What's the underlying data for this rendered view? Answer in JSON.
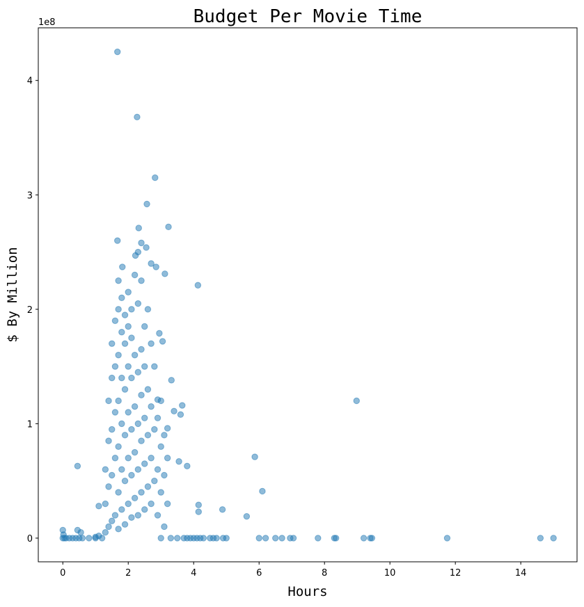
{
  "chart_data": {
    "type": "scatter",
    "title": "Budget Per Movie Time",
    "xlabel": "Hours",
    "ylabel": "$ By Million",
    "y_offset_label": "1e8",
    "color": "#1f77b4",
    "alpha": 0.5,
    "xlim": [
      -0.75,
      15.72
    ],
    "xticks": [
      0,
      2,
      4,
      6,
      8,
      10,
      12,
      14
    ],
    "ylim": [
      -20700000,
      446000000
    ],
    "yticks": [
      {
        "value": 0,
        "label": "0"
      },
      {
        "value": 100000000,
        "label": "1"
      },
      {
        "value": 200000000,
        "label": "2"
      },
      {
        "value": 300000000,
        "label": "3"
      },
      {
        "value": 400000000,
        "label": "4"
      }
    ],
    "x": [
      1.67,
      2.27,
      2.82,
      2.57,
      2.32,
      3.23,
      1.67,
      2.4,
      2.55,
      2.3,
      2.22,
      1.82,
      2.7,
      2.85,
      2.95,
      3.12,
      4.13,
      8.98,
      3.65,
      3.32,
      5.87,
      6.1,
      4.15,
      4.15,
      4.88,
      5.62,
      0.45,
      3.8,
      3.55,
      3.05,
      3.6,
      2.9,
      3.4,
      3.2,
      3.0,
      0,
      0.05,
      0.1,
      0.2,
      0.3,
      0.4,
      0.5,
      0.6,
      0.8,
      1.0,
      1.2,
      3.0,
      3.3,
      3.5,
      3.7,
      3.8,
      3.9,
      4.0,
      4.1,
      4.2,
      4.3,
      4.5,
      4.6,
      4.7,
      4.9,
      5.0,
      6.0,
      6.2,
      6.5,
      6.7,
      6.95,
      7.05,
      7.8,
      8.3,
      8.35,
      9.2,
      9.4,
      9.45,
      11.75,
      14.6,
      15.0,
      0,
      0.45,
      0.55,
      0.02,
      1.3,
      1.3,
      1.3,
      1.4,
      1.4,
      1.4,
      1.4,
      1.5,
      1.5,
      1.5,
      1.5,
      1.5,
      1.6,
      1.6,
      1.6,
      1.6,
      1.6,
      1.7,
      1.7,
      1.7,
      1.7,
      1.7,
      1.7,
      1.7,
      1.8,
      1.8,
      1.8,
      1.8,
      1.8,
      1.8,
      1.9,
      1.9,
      1.9,
      1.9,
      1.9,
      1.9,
      2.0,
      2.0,
      2.0,
      2.0,
      2.0,
      2.0,
      2.1,
      2.1,
      2.1,
      2.1,
      2.1,
      2.1,
      2.2,
      2.2,
      2.2,
      2.2,
      2.2,
      2.3,
      2.3,
      2.3,
      2.3,
      2.3,
      2.4,
      2.4,
      2.4,
      2.4,
      2.4,
      2.5,
      2.5,
      2.5,
      2.5,
      2.5,
      2.6,
      2.6,
      2.6,
      2.6,
      2.7,
      2.7,
      2.7,
      2.7,
      2.8,
      2.8,
      2.8,
      2.9,
      2.9,
      2.9,
      3.0,
      3.0,
      3.1,
      3.1,
      3.1,
      3.2,
      3.2,
      1.1,
      1.1,
      1.0
    ],
    "values": [
      425000000,
      368000000,
      315000000,
      292000000,
      271000000,
      272000000,
      260000000,
      258000000,
      254000000,
      250000000,
      247000000,
      237000000,
      240000000,
      237000000,
      179000000,
      231000000,
      221000000,
      120000000,
      116000000,
      138000000,
      71000000,
      41000000,
      29000000,
      23000000,
      25000000,
      19000000,
      63000000,
      63000000,
      67000000,
      172000000,
      108000000,
      121000000,
      111000000,
      96000000,
      120000000,
      0,
      0,
      0,
      0,
      0,
      0,
      0,
      0,
      0,
      0,
      0,
      0,
      0,
      0,
      0,
      0,
      0,
      0,
      0,
      0,
      0,
      0,
      0,
      0,
      0,
      0,
      0,
      0,
      0,
      0,
      0,
      0,
      0,
      0,
      0,
      0,
      0,
      0,
      0,
      0,
      0,
      7000000,
      7000000,
      5000000,
      3000000,
      5000000,
      30000000,
      60000000,
      10000000,
      45000000,
      85000000,
      120000000,
      15000000,
      55000000,
      95000000,
      140000000,
      170000000,
      20000000,
      70000000,
      110000000,
      150000000,
      190000000,
      8000000,
      40000000,
      80000000,
      120000000,
      160000000,
      200000000,
      225000000,
      25000000,
      60000000,
      100000000,
      140000000,
      180000000,
      210000000,
      12000000,
      50000000,
      90000000,
      130000000,
      170000000,
      195000000,
      30000000,
      70000000,
      110000000,
      150000000,
      185000000,
      215000000,
      18000000,
      55000000,
      95000000,
      140000000,
      175000000,
      200000000,
      35000000,
      75000000,
      115000000,
      160000000,
      230000000,
      20000000,
      60000000,
      100000000,
      145000000,
      205000000,
      40000000,
      85000000,
      125000000,
      165000000,
      225000000,
      25000000,
      65000000,
      105000000,
      150000000,
      185000000,
      45000000,
      90000000,
      130000000,
      200000000,
      30000000,
      70000000,
      115000000,
      170000000,
      50000000,
      95000000,
      150000000,
      20000000,
      60000000,
      105000000,
      40000000,
      80000000,
      10000000,
      55000000,
      90000000,
      30000000,
      70000000,
      2000000,
      28000000,
      1000000
    ]
  }
}
